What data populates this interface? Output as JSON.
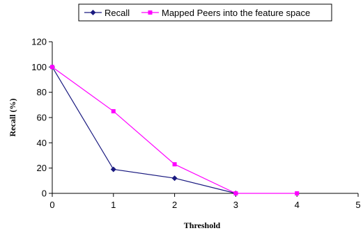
{
  "chart_data": {
    "type": "line",
    "xlabel": "Threshold",
    "ylabel": "Recall (%)",
    "x_ticks": [
      "0",
      "1",
      "2",
      "3",
      "4",
      "5"
    ],
    "y_ticks": [
      "0",
      "20",
      "40",
      "60",
      "80",
      "100",
      "120"
    ],
    "xlim": [
      0,
      5
    ],
    "ylim": [
      0,
      120
    ],
    "grid": false,
    "legend_position": "top",
    "series": [
      {
        "name": "Recall",
        "color": "#1a1a80",
        "marker": "diamond",
        "points": [
          {
            "x": 0,
            "y": 100
          },
          {
            "x": 1,
            "y": 19
          },
          {
            "x": 2,
            "y": 12
          },
          {
            "x": 3,
            "y": 0
          }
        ]
      },
      {
        "name": "Mapped Peers into the feature space",
        "color": "#ff00ff",
        "marker": "square",
        "points": [
          {
            "x": 0,
            "y": 100
          },
          {
            "x": 1,
            "y": 65
          },
          {
            "x": 2,
            "y": 23
          },
          {
            "x": 3,
            "y": 0
          },
          {
            "x": 4,
            "y": 0
          }
        ]
      }
    ]
  }
}
